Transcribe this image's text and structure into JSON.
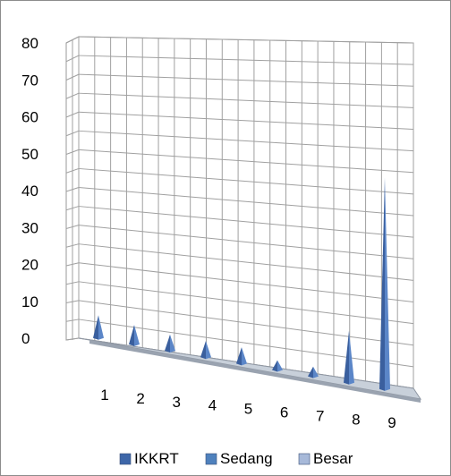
{
  "chart_data": {
    "type": "area",
    "title": "",
    "xlabel": "",
    "ylabel": "",
    "ylim": [
      0,
      80
    ],
    "ytick_labels": [
      "0",
      "10",
      "20",
      "30",
      "40",
      "50",
      "60",
      "70",
      "80"
    ],
    "categories": [
      "1",
      "2",
      "3",
      "4",
      "5",
      "6",
      "7",
      "8",
      "9"
    ],
    "series": [
      {
        "name": "IKKRT",
        "values": [
          7,
          6,
          5,
          5,
          5,
          3,
          3,
          16,
          65
        ],
        "color": "#3d66a8"
      },
      {
        "name": "Sedang",
        "values": [
          0,
          0,
          0,
          0,
          0,
          0,
          0,
          0,
          0
        ],
        "color": "#4f81bd"
      },
      {
        "name": "Besar",
        "values": [
          0,
          0,
          0,
          0,
          0,
          0,
          0,
          0,
          0
        ],
        "color": "#a7b9d9"
      }
    ],
    "grid": true,
    "style": "3d",
    "legend_position": "bottom"
  }
}
